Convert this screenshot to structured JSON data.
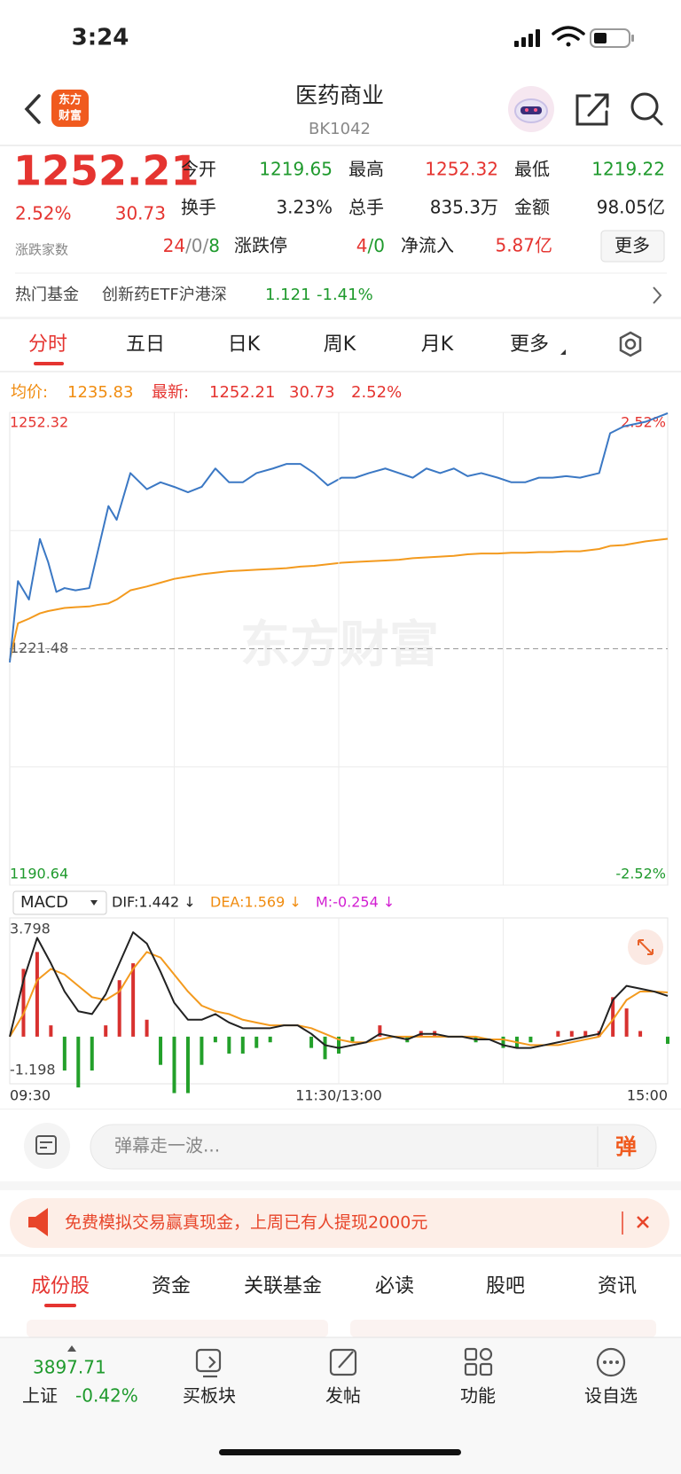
{
  "status": {
    "time": "3:24"
  },
  "header": {
    "logo": [
      "东方",
      "财富"
    ],
    "title": "医药商业",
    "code": "BK1042"
  },
  "quote": {
    "price": "1252.21",
    "change_pct": "2.52%",
    "change": "30.73",
    "breadth_label": "涨跌家数",
    "breadth": [
      "24",
      "/0/",
      "8"
    ],
    "limit_label": "涨跌停",
    "limit": [
      "4",
      "/0"
    ],
    "open_label": "今开",
    "open": "1219.65",
    "high_label": "最高",
    "high": "1252.32",
    "low_label": "最低",
    "low": "1219.22",
    "turnover_label": "换手",
    "turnover": "3.23%",
    "volume_label": "总手",
    "volume": "835.3万",
    "amount_label": "金额",
    "amount": "98.05亿",
    "inflow_label": "净流入",
    "inflow": "5.87亿",
    "more": "更多"
  },
  "fund": {
    "label": "热门基金",
    "name": "创新药ETF沪港深",
    "price": "1.121",
    "change": "-1.41%"
  },
  "chart_tabs": [
    "分时",
    "五日",
    "日K",
    "周K",
    "月K",
    "更多"
  ],
  "chart_legend": {
    "avg_label": "均价:",
    "avg": "1235.83",
    "last_label": "最新:",
    "last": "1252.21",
    "change": "30.73",
    "change_pct": "2.52%"
  },
  "watermark": "东方财富",
  "indicator": {
    "selector": "MACD",
    "dif": "DIF:1.442 ↓",
    "dea": "DEA:1.569 ↓",
    "m": "M:-0.254 ↓"
  },
  "comment": {
    "placeholder": "弹幕走一波...",
    "button": "弹"
  },
  "banner": {
    "text": "免费模拟交易赢真现金，上周已有人提现2000元"
  },
  "section_tabs": [
    "成份股",
    "资金",
    "关联基金",
    "必读",
    "股吧",
    "资讯"
  ],
  "bottom_nav": {
    "index_value": "3897.71",
    "index_name": "上证",
    "index_change": "-0.42%",
    "items": [
      "买板块",
      "发帖",
      "功能",
      "设自选"
    ]
  },
  "chart_data": [
    {
      "type": "line",
      "x": [
        0,
        3,
        7,
        11,
        14,
        17,
        20,
        24,
        29,
        32,
        36,
        39,
        44,
        50,
        55,
        60,
        65,
        70,
        75,
        80,
        85,
        90,
        96,
        101,
        106,
        111,
        116,
        121,
        126,
        131,
        137,
        142,
        147,
        152,
        157,
        162,
        167,
        172,
        178,
        183,
        188,
        193,
        198,
        203,
        208,
        215,
        219,
        224,
        232,
        240
      ],
      "xlim": [
        0,
        240
      ],
      "ylim": [
        1190.64,
        1252.32
      ],
      "yticks": [
        1252.32,
        1221.48,
        1190.64
      ],
      "y2lim": [
        -2.52,
        2.52
      ],
      "y2ticks": [
        {
          "value": 2.52,
          "label": "2.52%"
        },
        {
          "value": -2.52,
          "label": "-2.52%"
        }
      ],
      "series": [
        {
          "color": "#3b78c4",
          "values": [
            1219.7,
            1230.3,
            1227.9,
            1235.8,
            1232.8,
            1228.9,
            1229.4,
            1229.1,
            1229.4,
            1234.0,
            1240.1,
            1238.3,
            1244.4,
            1242.3,
            1243.2,
            1242.6,
            1241.9,
            1242.6,
            1245.0,
            1243.2,
            1243.2,
            1244.4,
            1245.0,
            1245.6,
            1245.6,
            1244.4,
            1242.8,
            1243.8,
            1243.8,
            1244.4,
            1245.0,
            1244.4,
            1243.8,
            1245.0,
            1244.4,
            1245.0,
            1244.0,
            1244.4,
            1243.8,
            1243.2,
            1243.2,
            1243.8,
            1243.8,
            1244.0,
            1243.8,
            1244.4,
            1249.6,
            1250.5,
            1251.1,
            1252.21
          ]
        },
        {
          "color": "#f39a1e",
          "values": [
            1220.0,
            1224.8,
            1225.4,
            1226.1,
            1226.4,
            1226.6,
            1226.8,
            1226.9,
            1227.0,
            1227.2,
            1227.4,
            1227.9,
            1229.1,
            1229.6,
            1230.1,
            1230.6,
            1230.9,
            1231.2,
            1231.4,
            1231.6,
            1231.7,
            1231.8,
            1231.9,
            1232.0,
            1232.2,
            1232.3,
            1232.5,
            1232.7,
            1232.8,
            1232.9,
            1233.0,
            1233.1,
            1233.3,
            1233.4,
            1233.5,
            1233.6,
            1233.8,
            1233.9,
            1233.9,
            1234.0,
            1234.0,
            1234.1,
            1234.1,
            1234.2,
            1234.2,
            1234.5,
            1234.9,
            1235.0,
            1235.5,
            1235.83
          ]
        }
      ]
    },
    {
      "type": "macd",
      "x": [
        0,
        5,
        10,
        15,
        20,
        25,
        30,
        35,
        40,
        45,
        50,
        55,
        60,
        65,
        70,
        75,
        80,
        85,
        90,
        95,
        100,
        105,
        110,
        115,
        120,
        125,
        130,
        135,
        140,
        145,
        150,
        155,
        160,
        165,
        170,
        175,
        180,
        185,
        190,
        195,
        200,
        205,
        210,
        215,
        220,
        225,
        230,
        235,
        240
      ],
      "xlim": [
        0,
        240
      ],
      "xticks": [
        {
          "value": 0,
          "label": "09:30"
        },
        {
          "value": 120,
          "label": "11:30/13:00"
        },
        {
          "value": 240,
          "label": "15:00"
        }
      ],
      "ylim": [
        -1.198,
        3.798
      ],
      "yticks": [
        3.798,
        -1.198
      ],
      "series": [
        {
          "color": "#222222",
          "values": [
            0.0,
            2.0,
            3.5,
            2.6,
            1.6,
            0.9,
            0.8,
            1.5,
            2.6,
            3.7,
            3.3,
            2.3,
            1.2,
            0.6,
            0.6,
            0.8,
            0.5,
            0.3,
            0.3,
            0.3,
            0.4,
            0.4,
            0.1,
            -0.3,
            -0.4,
            -0.3,
            -0.2,
            0.1,
            0.0,
            -0.1,
            0.1,
            0.1,
            0.0,
            0.0,
            -0.1,
            -0.1,
            -0.3,
            -0.4,
            -0.4,
            -0.3,
            -0.2,
            -0.1,
            0.0,
            0.1,
            1.3,
            1.8,
            1.7,
            1.6,
            1.442
          ]
        },
        {
          "color": "#f39a1e",
          "values": [
            0.0,
            0.8,
            2.0,
            2.4,
            2.2,
            1.8,
            1.4,
            1.3,
            1.6,
            2.4,
            3.0,
            2.8,
            2.2,
            1.6,
            1.1,
            0.9,
            0.8,
            0.6,
            0.5,
            0.4,
            0.4,
            0.4,
            0.3,
            0.1,
            -0.1,
            -0.2,
            -0.2,
            -0.1,
            0.0,
            0.0,
            0.0,
            0.0,
            0.0,
            0.0,
            0.0,
            -0.1,
            -0.1,
            -0.2,
            -0.3,
            -0.3,
            -0.3,
            -0.2,
            -0.1,
            0.0,
            0.6,
            1.3,
            1.6,
            1.6,
            1.569
          ]
        },
        {
          "color": "#d8312f",
          "negative_color": "#23a02a",
          "values": [
            0,
            2.4,
            3.0,
            0.4,
            -1.2,
            -1.8,
            -1.2,
            0.4,
            2.0,
            2.6,
            0.6,
            -1.0,
            -2.0,
            -2.0,
            -1.0,
            -0.2,
            -0.6,
            -0.6,
            -0.4,
            -0.2,
            0,
            0,
            -0.4,
            -0.8,
            -0.6,
            -0.2,
            0,
            0.4,
            0,
            -0.2,
            0.2,
            0.2,
            0,
            0,
            -0.2,
            0,
            -0.4,
            -0.4,
            -0.2,
            0,
            0.2,
            0.2,
            0.2,
            0.2,
            1.4,
            1.0,
            0.2,
            0,
            -0.254
          ]
        }
      ]
    }
  ]
}
